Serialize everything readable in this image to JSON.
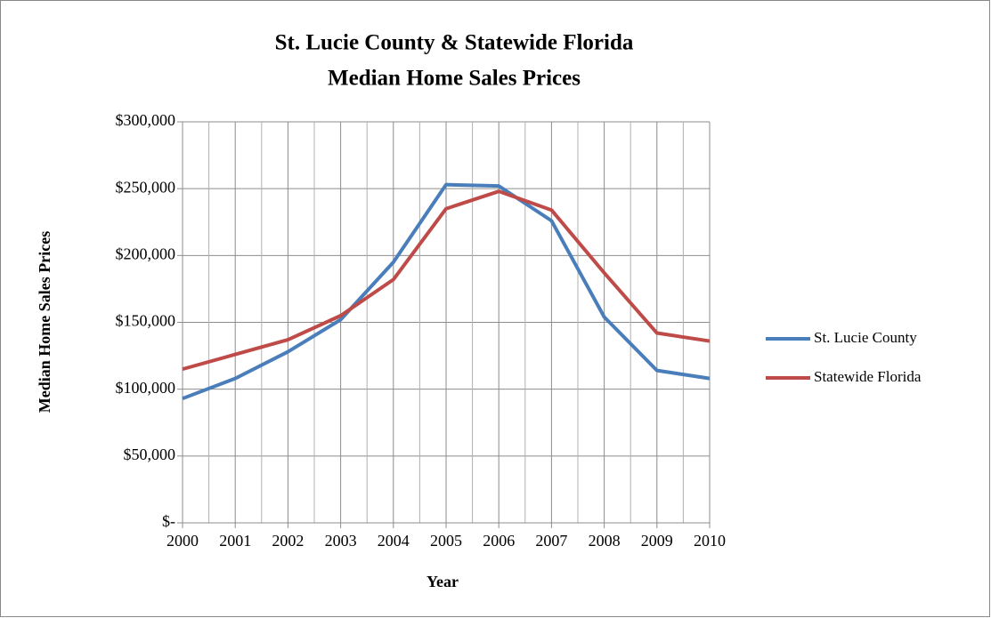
{
  "chart_data": {
    "type": "line",
    "title": "St. Lucie County & Statewide Florida",
    "subtitle": "Median Home Sales Prices",
    "x_label": "Year",
    "y_label": "Median Home Sales Prices",
    "x": [
      2000,
      2001,
      2002,
      2003,
      2004,
      2005,
      2006,
      2007,
      2008,
      2009,
      2010
    ],
    "series": [
      {
        "name": "St. Lucie County",
        "color": "#4a7ebb",
        "values": [
          93000,
          108000,
          128000,
          152000,
          195000,
          253000,
          252000,
          226000,
          154000,
          114000,
          108000
        ]
      },
      {
        "name": "Statewide Florida",
        "color": "#be4b48",
        "values": [
          115000,
          126000,
          137000,
          155000,
          182000,
          235000,
          248000,
          234000,
          187000,
          142000,
          136000
        ]
      }
    ],
    "xlim": [
      2000,
      2010
    ],
    "xticks": [
      2000,
      2001,
      2002,
      2003,
      2004,
      2005,
      2006,
      2007,
      2008,
      2009,
      2010
    ],
    "ylim": [
      0,
      300000
    ],
    "yticks": [
      {
        "value": 0,
        "label": "$-"
      },
      {
        "value": 50000,
        "label": "$50,000"
      },
      {
        "value": 100000,
        "label": "$100,000"
      },
      {
        "value": 150000,
        "label": "$150,000"
      },
      {
        "value": 200000,
        "label": "$200,000"
      },
      {
        "value": 250000,
        "label": "$250,000"
      },
      {
        "value": 300000,
        "label": "$300,000"
      }
    ],
    "grid": true,
    "minor_x_grid": true,
    "legend": "right"
  }
}
